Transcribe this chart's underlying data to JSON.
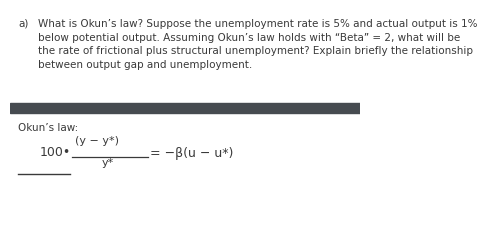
{
  "question_label": "a)",
  "question_text": "What is Okun’s law? Suppose the unemployment rate is 5% and actual output is 1%\nbelow potential output. Assuming Okun’s law holds with “Beta” = 2, what will be\nthe rate of frictional plus structural unemployment? Explain briefly the relationship\nbetween output gap and unemployment.",
  "divider_color": "#464b50",
  "okuns_label": "Okun’s law:",
  "formula_prefix": "100•",
  "numerator": "(y − y*)",
  "denominator": "y*",
  "formula_suffix": "= −β(u − u*)",
  "bg_color": "#ffffff",
  "text_color": "#3a3a3a",
  "question_fontsize": 7.5,
  "label_fontsize": 7.5,
  "formula_fontsize": 9.0
}
